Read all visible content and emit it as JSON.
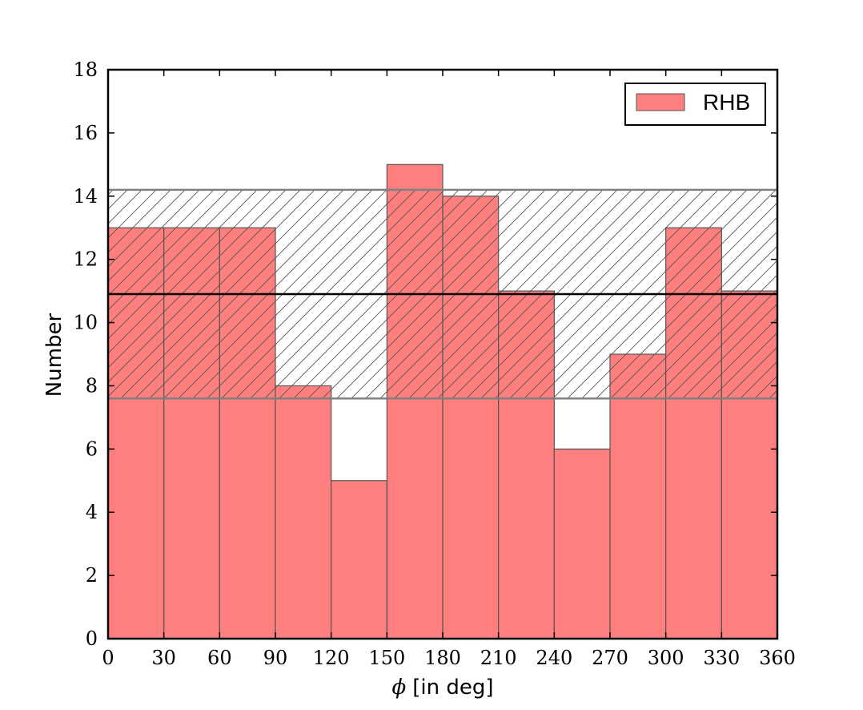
{
  "chart_data": {
    "type": "bar",
    "bin_edges": [
      0,
      30,
      60,
      90,
      120,
      150,
      180,
      210,
      240,
      270,
      300,
      330,
      360
    ],
    "values": [
      13,
      13,
      13,
      8,
      5,
      15,
      14,
      11,
      6,
      9,
      13,
      11
    ],
    "series_name": "RHB",
    "xlabel_symbol": "ϕ",
    "xlabel": "[in deg]",
    "ylabel": "Number",
    "xlim": [
      0,
      360
    ],
    "ylim": [
      0,
      18
    ],
    "xticks": [
      0,
      30,
      60,
      90,
      120,
      150,
      180,
      210,
      240,
      270,
      300,
      330,
      360
    ],
    "yticks": [
      0,
      2,
      4,
      6,
      8,
      10,
      12,
      14,
      16,
      18
    ],
    "mean_line": 10.9,
    "band": [
      7.6,
      14.2
    ],
    "legend_position": "top-right",
    "grid": false,
    "colors": {
      "bar_fill": "#ff7f7f",
      "bar_edge": "#555555",
      "mean_line": "#000000",
      "band_edge": "#808080",
      "hatch": "#555555"
    }
  }
}
